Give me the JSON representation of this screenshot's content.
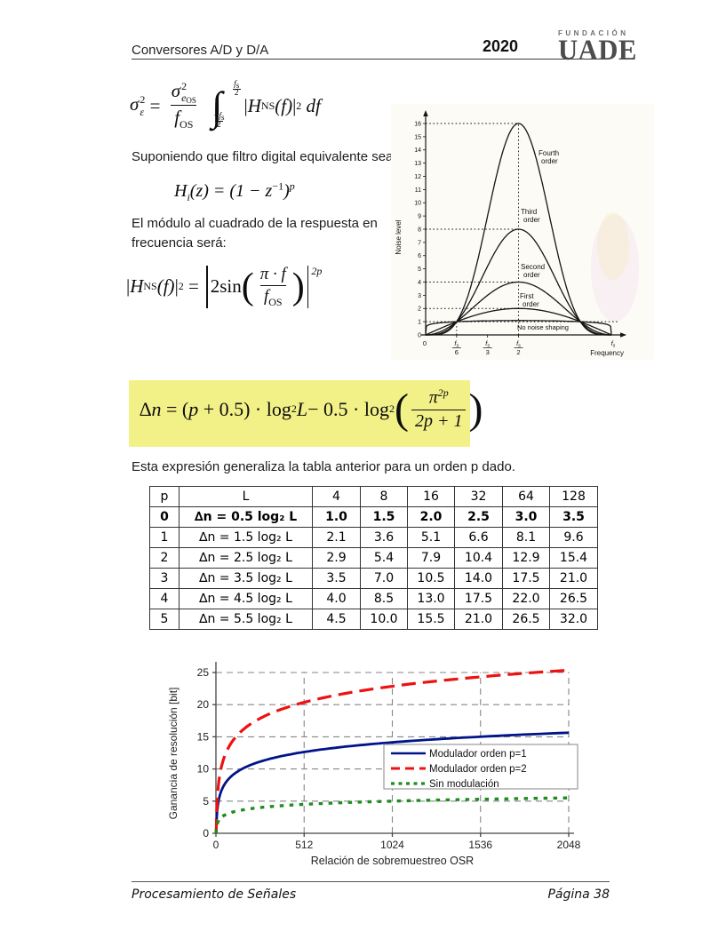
{
  "header": {
    "title": "Conversores A/D y D/A",
    "year": "2020",
    "logo_top": "FUNDACIÓN",
    "logo_main": "UADE"
  },
  "paragraphs": {
    "p1": "Suponiendo que filtro digital equivalente sea",
    "p2": "El módulo al cuadrado de la respuesta en frecuencia será:",
    "p3": "Esta expresión generaliza la tabla anterior para un orden p dado."
  },
  "math": {
    "f1": {
      "lhs_base": "σ",
      "lhs_sup": "2",
      "lhs_sub": "ε",
      "eq": " = ",
      "num_base": "σ",
      "num_sup": "2",
      "num_sub": "e",
      "num_subsub": "OS",
      "den_base": "f",
      "den_sub": "OS",
      "int": "∫",
      "lim_hi_num": "f",
      "lim_hi_sub": "s",
      "lim_hi_den": "2",
      "lim_lo_num": "−f",
      "lim_lo_sub": "s",
      "lim_lo_den": "2",
      "bar1": "|",
      "H": "H",
      "Hsub": "NS",
      "arg": "(f)",
      "bar2": "|",
      "sup2": "2",
      "df": "df"
    },
    "f2": {
      "H": "H",
      "sub": "i",
      "mid": "(z) = (1 − z",
      "sup1": "−1",
      "close": ")",
      "sup2": "p"
    },
    "f3": {
      "bar1": "|",
      "H": "H",
      "Hsub": "NS",
      "arg": "(f)",
      "bar2": "|",
      "sup2": "2",
      "eq": " = ",
      "coef": "2sin",
      "num": "π · f",
      "den_base": "f",
      "den_sub": "OS",
      "exp": "2p"
    },
    "f4": {
      "dn": "∆n",
      "eq": " = (",
      "p": "p",
      "rest1": " + 0.5) · log",
      "sub1": "2",
      "L": " L ",
      "rest2": "− 0.5 · log",
      "sub2": "2",
      "num_base": "π",
      "num_sup": "2p",
      "den": "2p + 1"
    }
  },
  "table": {
    "col_p": "p",
    "col_L": "L",
    "l_values": [
      "4",
      "8",
      "16",
      "32",
      "64",
      "128"
    ],
    "rows": [
      {
        "p": "0",
        "expr": "∆n = 0.5 log₂ L",
        "vals": [
          "1.0",
          "1.5",
          "2.0",
          "2.5",
          "3.0",
          "3.5"
        ]
      },
      {
        "p": "1",
        "expr": "∆n = 1.5 log₂ L",
        "vals": [
          "2.1",
          "3.6",
          "5.1",
          "6.6",
          "8.1",
          "9.6"
        ]
      },
      {
        "p": "2",
        "expr": "∆n = 2.5 log₂ L",
        "vals": [
          "2.9",
          "5.4",
          "7.9",
          "10.4",
          "12.9",
          "15.4"
        ]
      },
      {
        "p": "3",
        "expr": "∆n = 3.5 log₂ L",
        "vals": [
          "3.5",
          "7.0",
          "10.5",
          "14.0",
          "17.5",
          "21.0"
        ]
      },
      {
        "p": "4",
        "expr": "∆n = 4.5 log₂ L",
        "vals": [
          "4.0",
          "8.5",
          "13.0",
          "17.5",
          "22.0",
          "26.5"
        ]
      },
      {
        "p": "5",
        "expr": "∆n = 5.5 log₂ L",
        "vals": [
          "4.5",
          "10.0",
          "15.5",
          "21.0",
          "26.5",
          "32.0"
        ]
      }
    ]
  },
  "chart_data": [
    {
      "type": "line",
      "xlabel": "Frequency",
      "ylabel": "Noise level",
      "x_ticks": [
        "0",
        "fs/6",
        "fs/3",
        "fs/2",
        "fs"
      ],
      "ylim": [
        0,
        16
      ],
      "curve_formula": "y = (2·sin(π·f/fs))^order",
      "series": [
        {
          "name": "Fourth order",
          "order": 4,
          "peak": 16
        },
        {
          "name": "Third order",
          "order": 3,
          "peak": 8
        },
        {
          "name": "Second order",
          "order": 2,
          "peak": 4
        },
        {
          "name": "First order",
          "order": 1,
          "peak": 2
        },
        {
          "name": "No noise shaping",
          "order": 0,
          "peak": 1
        }
      ],
      "reference_dotted_levels": [
        1,
        2,
        4,
        8,
        16
      ],
      "reference_dotted_verticals": [
        "fs/6",
        "fs/2"
      ]
    },
    {
      "type": "line",
      "xlabel": "Relación de sobremuestreo OSR",
      "ylabel": "Ganancia de resolución [bit]",
      "xlim": [
        0,
        2048
      ],
      "ylim": [
        0,
        25
      ],
      "x_ticks": [
        0,
        512,
        1024,
        1536,
        2048
      ],
      "y_ticks": [
        0,
        5,
        10,
        15,
        20,
        25
      ],
      "grid": "dashed",
      "legend_position": "center-right",
      "osr_samples": [
        2,
        4,
        8,
        16,
        32,
        64,
        128,
        256,
        512,
        1024,
        2048
      ],
      "series": [
        {
          "name": "Modulador orden p=1",
          "color": "#001489",
          "style": "solid",
          "slope": 1.5,
          "intercept": -0.86,
          "values": [
            0.6,
            2.1,
            3.6,
            5.1,
            6.6,
            8.1,
            9.6,
            11.1,
            12.6,
            14.1,
            15.6
          ]
        },
        {
          "name": "Modulador orden p=2",
          "color": "#ee1111",
          "style": "dashed",
          "slope": 2.5,
          "intercept": -2.14,
          "values": [
            0.4,
            2.9,
            5.4,
            7.9,
            10.4,
            12.9,
            15.4,
            17.9,
            20.4,
            22.9,
            25.4
          ]
        },
        {
          "name": "Sin modulación",
          "color": "#1e8c1e",
          "style": "dotted",
          "slope": 0.5,
          "intercept": 0,
          "values": [
            0.5,
            1.0,
            1.5,
            2.0,
            2.5,
            3.0,
            3.5,
            4.0,
            4.5,
            5.0,
            5.5
          ]
        }
      ]
    }
  ],
  "footer": {
    "left": "Procesamiento de Señales",
    "right": "Página 38"
  }
}
